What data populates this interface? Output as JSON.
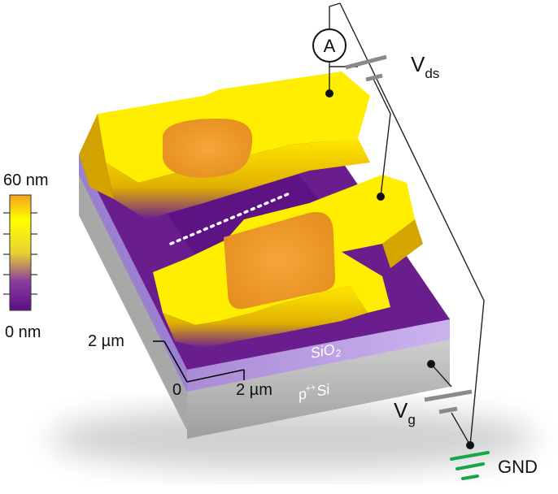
{
  "colorbar": {
    "max_label": "60 nm",
    "min_label": "0 nm",
    "colors": [
      "#f2a020",
      "#ffff00",
      "#e6cc20",
      "#7a2f9a",
      "#5a0f86"
    ]
  },
  "axes": {
    "y_tick": "2 µm",
    "origin": "0",
    "x_tick": "2 µm"
  },
  "layers": {
    "oxide": "SiO",
    "oxide_sub": "2",
    "substrate": "p",
    "substrate_sup": "++",
    "substrate_tail": "Si"
  },
  "circuit": {
    "ammeter": "A",
    "vds_main": "V",
    "vds_sub": "ds",
    "vg_main": "V",
    "vg_sub": "g",
    "ground": "GND"
  },
  "colors": {
    "gold": "#ffee00",
    "purple": "#6d1f8f",
    "oxide": "#b79be0",
    "silicon": "#c4c4c4",
    "ground": "#19a64a"
  }
}
